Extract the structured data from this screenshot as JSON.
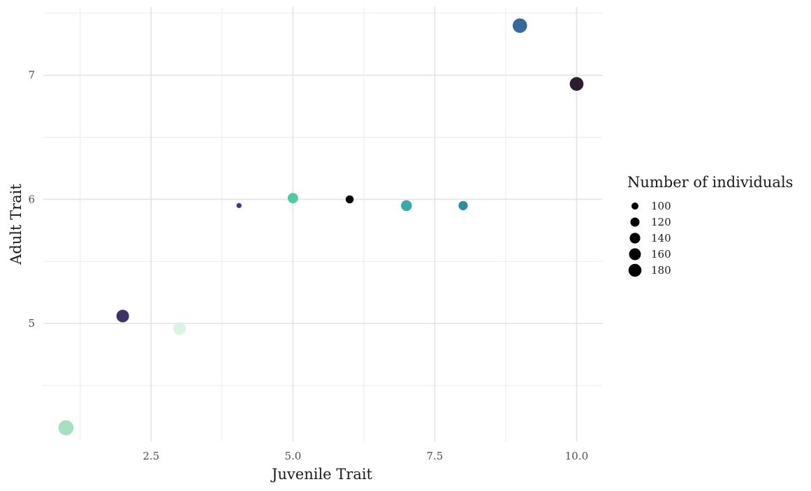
{
  "chart_data": {
    "type": "scatter",
    "title": "",
    "xlabel": "Juvenile Trait",
    "ylabel": "Adult Trait",
    "xlim": [
      0.6,
      10.45
    ],
    "ylim": [
      4.05,
      7.55
    ],
    "x_ticks": [
      2.5,
      5.0,
      7.5,
      10.0
    ],
    "x_tick_labels": [
      "2.5",
      "5.0",
      "7.5",
      "10.0"
    ],
    "y_ticks": [
      5,
      6,
      7
    ],
    "y_tick_labels": [
      "5",
      "6",
      "7"
    ],
    "grid": true,
    "legend_position": "right",
    "legend": {
      "title": "Number of individuals",
      "entries": [
        {
          "label": "100",
          "size": 100
        },
        {
          "label": "120",
          "size": 120
        },
        {
          "label": "140",
          "size": 140
        },
        {
          "label": "160",
          "size": 160
        },
        {
          "label": "180",
          "size": 180
        }
      ]
    },
    "points": [
      {
        "x": 1.0,
        "y": 4.16,
        "size": 185,
        "color": "#a8dfc2"
      },
      {
        "x": 2.0,
        "y": 5.06,
        "size": 150,
        "color": "#3f3366"
      },
      {
        "x": 3.0,
        "y": 4.96,
        "size": 150,
        "color": "#dcf2e3"
      },
      {
        "x": 4.05,
        "y": 5.95,
        "size": 90,
        "color": "#403a80"
      },
      {
        "x": 5.0,
        "y": 6.01,
        "size": 125,
        "color": "#4ecaa8"
      },
      {
        "x": 6.0,
        "y": 6.0,
        "size": 105,
        "color": "#060606"
      },
      {
        "x": 7.0,
        "y": 5.95,
        "size": 130,
        "color": "#38aaa8"
      },
      {
        "x": 8.0,
        "y": 5.95,
        "size": 115,
        "color": "#2e8d9f"
      },
      {
        "x": 9.0,
        "y": 7.4,
        "size": 175,
        "color": "#366a9c"
      },
      {
        "x": 10.0,
        "y": 6.93,
        "size": 165,
        "color": "#2d1c31"
      }
    ]
  }
}
